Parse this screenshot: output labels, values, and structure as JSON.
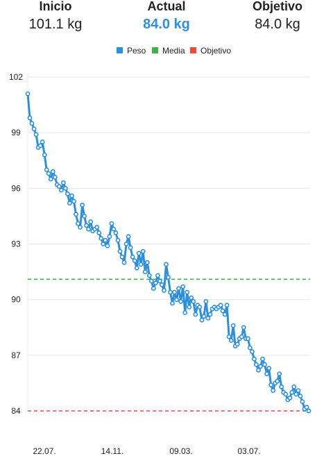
{
  "header": {
    "start": {
      "label": "Inicio",
      "value": "101.1 kg"
    },
    "current": {
      "label": "Actual",
      "value": "84.0 kg"
    },
    "goal": {
      "label": "Objetivo",
      "value": "84.0 kg"
    }
  },
  "colors": {
    "peso": "#2b8fe0",
    "media": "#3cb44b",
    "objetivo": "#e74c3c",
    "accent": "#2b8fe0",
    "grid": "#e6e6e6"
  },
  "legend": [
    {
      "label": "Peso",
      "color": "#2b8fe0"
    },
    {
      "label": "Media",
      "color": "#3cb44b"
    },
    {
      "label": "Objetivo",
      "color": "#e74c3c"
    }
  ],
  "chart_data": {
    "type": "line",
    "title": "",
    "xlabel": "",
    "ylabel": "",
    "ylim": [
      84,
      102
    ],
    "y_ticks": [
      84,
      87,
      90,
      93,
      96,
      99,
      102
    ],
    "x_ticks": [
      "22.07.",
      "14.11.",
      "09.03.",
      "03.07."
    ],
    "grid": true,
    "legend_position": "top",
    "series": [
      {
        "name": "Peso",
        "color": "#2b8fe0",
        "values": [
          101.1,
          99.8,
          99.5,
          99.2,
          98.9,
          98.2,
          98.3,
          98.5,
          97.8,
          97.0,
          96.8,
          96.5,
          96.9,
          96.6,
          96.2,
          96.1,
          95.9,
          96.3,
          96.0,
          95.7,
          95.2,
          95.6,
          95.3,
          94.6,
          94.1,
          93.9,
          95.1,
          94.5,
          94.0,
          93.8,
          94.2,
          93.7,
          93.8,
          93.9,
          93.6,
          93.3,
          93.0,
          93.2,
          92.9,
          93.4,
          94.1,
          93.8,
          93.6,
          93.2,
          92.6,
          92.3,
          92.0,
          93.0,
          93.4,
          92.8,
          92.3,
          92.1,
          91.7,
          92.5,
          91.9,
          92.6,
          91.5,
          92.0,
          91.3,
          91.0,
          90.6,
          90.9,
          91.3,
          91.0,
          90.8,
          90.5,
          91.9,
          91.2,
          90.4,
          89.8,
          90.4,
          90.0,
          90.6,
          89.9,
          90.7,
          89.3,
          90.4,
          89.6,
          90.1,
          89.9,
          89.2,
          89.7,
          89.6,
          88.9,
          89.1,
          89.9,
          89.0,
          89.2,
          89.5,
          89.6,
          89.5,
          89.6,
          89.7,
          89.4,
          89.2,
          89.7,
          88.0,
          87.8,
          88.6,
          87.5,
          87.6,
          87.9,
          88.0,
          88.5,
          87.9,
          87.9,
          87.4,
          87.2,
          86.8,
          86.5,
          86.2,
          86.4,
          86.8,
          86.5,
          86.0,
          86.3,
          85.4,
          85.1,
          85.5,
          85.6,
          86.0,
          85.3,
          85.0,
          84.9,
          84.6,
          84.7,
          85.0,
          85.3,
          84.9,
          85.1,
          84.8,
          84.5,
          84.1,
          84.2,
          84.0
        ]
      },
      {
        "name": "Media",
        "color": "#3cb44b",
        "values": [
          91.1
        ]
      },
      {
        "name": "Objetivo",
        "color": "#e74c3c",
        "values": [
          84.0
        ]
      }
    ]
  }
}
